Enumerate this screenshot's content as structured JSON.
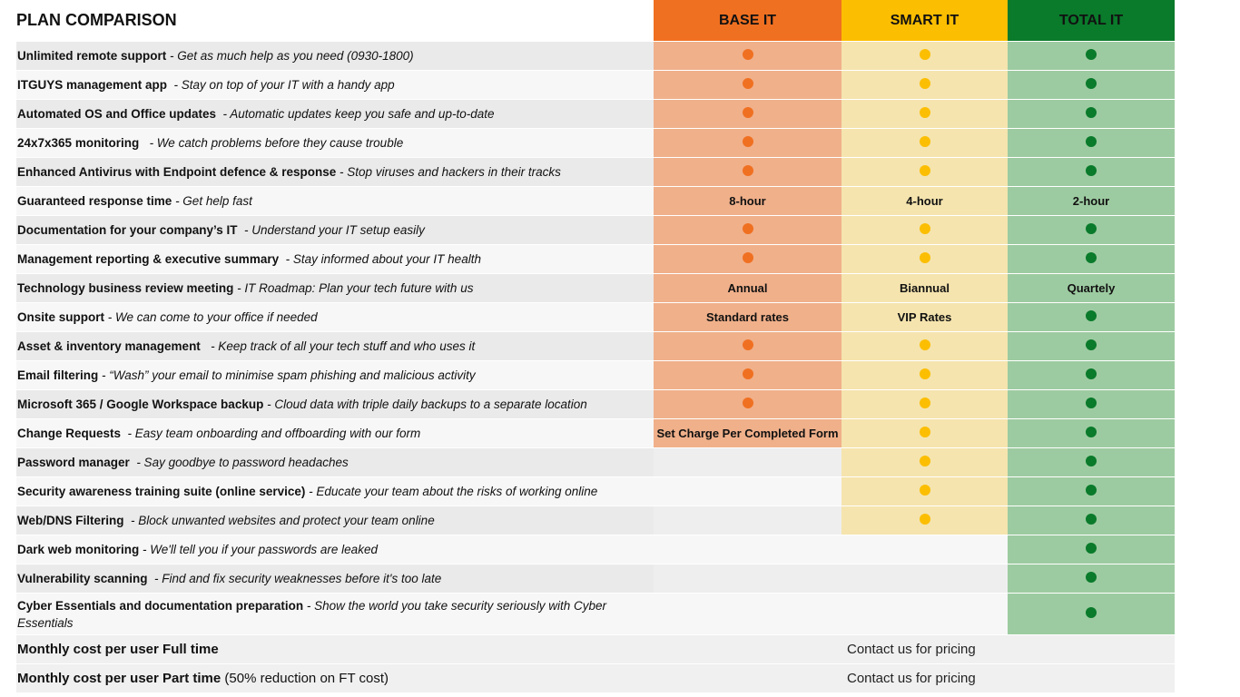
{
  "header": {
    "title": "PLAN COMPARISON",
    "plans": [
      "BASE IT",
      "SMART IT",
      "TOTAL IT"
    ]
  },
  "colors": {
    "base": "#f07021",
    "smart": "#fcbe00",
    "total": "#0a7a2b"
  },
  "features": [
    {
      "name": "Unlimited remote support",
      "desc": " - Get as much help as you need (0930-1800)",
      "base": "dot",
      "smart": "dot",
      "total": "dot"
    },
    {
      "name": "ITGUYS management app",
      "desc": "  - Stay on top of your IT with a handy app",
      "base": "dot",
      "smart": "dot",
      "total": "dot"
    },
    {
      "name": "Automated OS and Office updates",
      "desc": "  - Automatic updates keep you safe and up-to-date",
      "base": "dot",
      "smart": "dot",
      "total": "dot"
    },
    {
      "name": "24x7x365 monitoring",
      "desc": "   - We catch problems before they cause trouble",
      "base": "dot",
      "smart": "dot",
      "total": "dot"
    },
    {
      "name": "Enhanced Antivirus with Endpoint defence & response",
      "desc": " - Stop viruses and hackers in their tracks",
      "base": "dot",
      "smart": "dot",
      "total": "dot"
    },
    {
      "name": "Guaranteed response time",
      "desc": " - Get help fast",
      "base": "8-hour",
      "smart": "4-hour",
      "total": "2-hour"
    },
    {
      "name": "Documentation for your company’s IT",
      "desc": "  - Understand your IT setup easily",
      "base": "dot",
      "smart": "dot",
      "total": "dot"
    },
    {
      "name": "Management reporting & executive summary",
      "desc": "  - Stay informed about your IT health",
      "base": "dot",
      "smart": "dot",
      "total": "dot"
    },
    {
      "name": "Technology business review meeting",
      "desc": " - IT Roadmap: Plan your tech future with us",
      "base": "Annual",
      "smart": "Biannual",
      "total": "Quartely"
    },
    {
      "name": "Onsite support",
      "desc": " - We can come to your office if needed",
      "base": "Standard rates",
      "smart": "VIP Rates",
      "total": "dot"
    },
    {
      "name": "Asset & inventory management",
      "desc": "   - Keep track of all your tech stuff and who uses it",
      "base": "dot",
      "smart": "dot",
      "total": "dot"
    },
    {
      "name": "Email filtering",
      "desc": " - “Wash” your email to minimise spam phishing and malicious activity",
      "base": "dot",
      "smart": "dot",
      "total": "dot"
    },
    {
      "name": "Microsoft 365 / Google Workspace backup",
      "desc": " - Cloud data with triple daily backups to a separate location",
      "base": "dot",
      "smart": "dot",
      "total": "dot"
    },
    {
      "name": "Change Requests",
      "desc": "  - Easy team onboarding and offboarding with our form",
      "base": "Set Charge Per Completed Form",
      "smart": "dot",
      "total": "dot"
    },
    {
      "name": "Password manager",
      "desc": "  - Say goodbye to password headaches",
      "base": "",
      "smart": "dot",
      "total": "dot"
    },
    {
      "name": "Security awareness training suite (online service)",
      "desc": " - Educate your team about the risks of working online",
      "base": "",
      "smart": "dot",
      "total": "dot"
    },
    {
      "name": "Web/DNS Filtering",
      "desc": "  - Block unwanted websites and protect your team online",
      "base": "",
      "smart": "dot",
      "total": "dot"
    },
    {
      "name": "Dark web monitoring",
      "desc": " - We'll tell you if your passwords are leaked",
      "base": "",
      "smart": "",
      "total": "dot"
    },
    {
      "name": "Vulnerability scanning",
      "desc": "  - Find and fix security weaknesses before it's too late",
      "base": "",
      "smart": "",
      "total": "dot"
    },
    {
      "name": "Cyber Essentials and documentation preparation",
      "desc": " - Show the world you take security seriously with Cyber Essentials",
      "base": "",
      "smart": "",
      "total": "dot"
    }
  ],
  "costs": [
    {
      "label_bold": "Monthly cost per user Full time",
      "label_rest": "",
      "price": "Contact us for pricing"
    },
    {
      "label_bold": "Monthly cost per user Part time",
      "label_rest": " (50% reduction on FT cost)",
      "price": "Contact us for pricing"
    }
  ]
}
